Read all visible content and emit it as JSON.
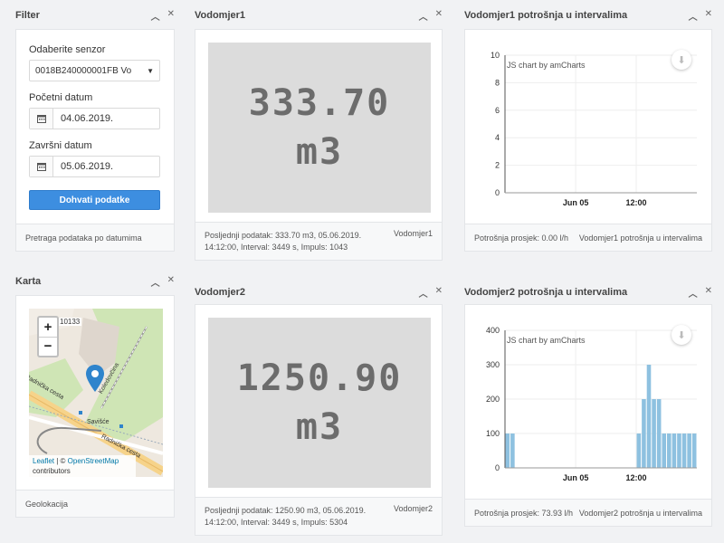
{
  "filter": {
    "title": "Filter",
    "sensor_label": "Odaberite senzor",
    "sensor_value": "0018B240000001FB Vo",
    "start_label": "Početni datum",
    "start_value": "04.06.2019.",
    "end_label": "Završni datum",
    "end_value": "05.06.2019.",
    "fetch_button": "Dohvati podatke",
    "footer": "Pretraga podataka po datumima"
  },
  "karta": {
    "title": "Karta",
    "footer": "Geolokacija",
    "zoom_in": "+",
    "zoom_out": "−",
    "house_number": "10133",
    "street_label_1": "Radnička cesta",
    "street_label_2": "Radnička cesta",
    "street_label_3": "Koledovčina",
    "place_label": "Savišće",
    "attribution_leaflet": "Leaflet",
    "attribution_sep": " | © ",
    "attribution_osm": "OpenStreetMap",
    "attribution_contrib": "contributors"
  },
  "vodomjer1": {
    "title": "Vodomjer1",
    "value": "333.70",
    "unit": "m3",
    "footer_line1": "Posljednji podatak: 333.70 m3, 05.06.2019.",
    "footer_line2": "14:12:00, Interval: 3449 s, Impuls: 1043",
    "footer_name": "Vodomjer1"
  },
  "vodomjer2": {
    "title": "Vodomjer2",
    "value": "1250.90",
    "unit": "m3",
    "footer_line1": "Posljednji podatak: 1250.90 m3, 05.06.2019.",
    "footer_line2": "14:12:00, Interval: 3449 s, Impuls: 5304",
    "footer_name": "Vodomjer2"
  },
  "chart1": {
    "title": "Vodomjer1 potrošnja u intervalima",
    "credit": "JS chart by amCharts",
    "footer_avg": "Potrošnja prosjek: 0.00 l/h",
    "footer_name": "Vodomjer1 potrošnja u intervalima"
  },
  "chart2": {
    "title": "Vodomjer2 potrošnja u intervalima",
    "credit": "JS chart by amCharts",
    "footer_avg": "Potrošnja prosjek: 73.93 l/h",
    "footer_name": "Vodomjer2 potrošnja u intervalima"
  },
  "colors": {
    "accent": "#3d8ee0",
    "bar": "#8ec1e0",
    "marker": "#2f84cc"
  },
  "chart_data": [
    {
      "type": "bar",
      "title": "Vodomjer1 potrošnja u intervalima",
      "x_ticks": [
        "Jun 05",
        "12:00"
      ],
      "y_ticks": [
        "0",
        "2",
        "4",
        "6",
        "8",
        "10"
      ],
      "ylim": [
        0,
        10
      ],
      "xlim_hours": [
        0,
        38
      ],
      "bars": []
    },
    {
      "type": "bar",
      "title": "Vodomjer2 potrošnja u intervalima",
      "x_ticks": [
        "Jun 05",
        "12:00"
      ],
      "y_ticks": [
        "0",
        "100",
        "200",
        "300",
        "400"
      ],
      "ylim": [
        0,
        400
      ],
      "xlim_hours": [
        0,
        38
      ],
      "bars": [
        {
          "hour": 0,
          "value": 100
        },
        {
          "hour": 1,
          "value": 100
        },
        {
          "hour": 26,
          "value": 100
        },
        {
          "hour": 27,
          "value": 200
        },
        {
          "hour": 28,
          "value": 300
        },
        {
          "hour": 29,
          "value": 200
        },
        {
          "hour": 30,
          "value": 200
        },
        {
          "hour": 31,
          "value": 100
        },
        {
          "hour": 32,
          "value": 100
        },
        {
          "hour": 33,
          "value": 100
        },
        {
          "hour": 34,
          "value": 100
        },
        {
          "hour": 35,
          "value": 100
        },
        {
          "hour": 36,
          "value": 100
        },
        {
          "hour": 37,
          "value": 100
        }
      ]
    }
  ]
}
